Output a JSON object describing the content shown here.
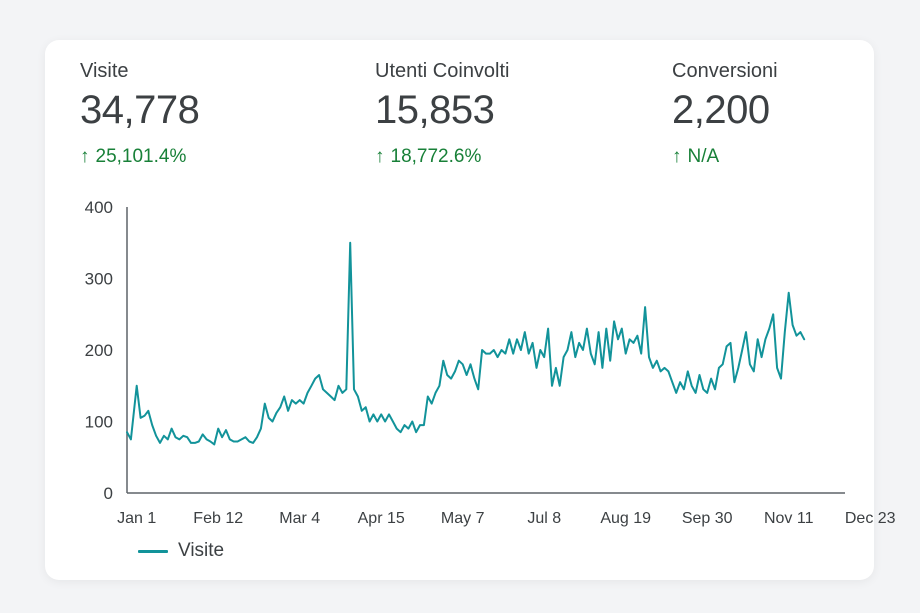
{
  "metrics": [
    {
      "label": "Visite",
      "value": "34,778",
      "change": "25,101.4%",
      "arrow": "↑"
    },
    {
      "label": "Utenti Coinvolti",
      "value": "15,853",
      "change": "18,772.6%",
      "arrow": "↑"
    },
    {
      "label": "Conversioni",
      "value": "2,200",
      "change": "N/A",
      "arrow": "↑"
    }
  ],
  "colors": {
    "series": "#12939a",
    "positive": "#188038",
    "text": "#3c4043",
    "axis": "#5f6368"
  },
  "chart_data": {
    "type": "line",
    "title": "",
    "xlabel": "",
    "ylabel": "",
    "ylim": [
      0,
      400
    ],
    "yticks": [
      0,
      100,
      200,
      300,
      400
    ],
    "x_range": [
      -5,
      365
    ],
    "xticks": [
      {
        "label": "Jan  1",
        "day": 0
      },
      {
        "label": "Feb 12",
        "day": 42
      },
      {
        "label": "Mar 4",
        "day": 84
      },
      {
        "label": "Apr 15",
        "day": 126
      },
      {
        "label": "May 7",
        "day": 168
      },
      {
        "label": "Jul 8",
        "day": 210
      },
      {
        "label": "Aug 19",
        "day": 252
      },
      {
        "label": "Sep 30",
        "day": 294
      },
      {
        "label": "Nov 11",
        "day": 336
      },
      {
        "label": "Dec 23",
        "day": 378
      }
    ],
    "legend": "bottom-left",
    "grid": false,
    "series": [
      {
        "name": "Visite",
        "points": [
          [
            -5,
            85
          ],
          [
            -3,
            75
          ],
          [
            0,
            150
          ],
          [
            2,
            105
          ],
          [
            4,
            108
          ],
          [
            6,
            115
          ],
          [
            8,
            95
          ],
          [
            10,
            80
          ],
          [
            12,
            70
          ],
          [
            14,
            80
          ],
          [
            16,
            75
          ],
          [
            18,
            90
          ],
          [
            20,
            78
          ],
          [
            22,
            75
          ],
          [
            24,
            80
          ],
          [
            26,
            78
          ],
          [
            28,
            70
          ],
          [
            30,
            70
          ],
          [
            32,
            72
          ],
          [
            34,
            82
          ],
          [
            36,
            75
          ],
          [
            38,
            72
          ],
          [
            40,
            68
          ],
          [
            42,
            90
          ],
          [
            44,
            78
          ],
          [
            46,
            88
          ],
          [
            48,
            75
          ],
          [
            50,
            72
          ],
          [
            52,
            72
          ],
          [
            54,
            75
          ],
          [
            56,
            78
          ],
          [
            58,
            72
          ],
          [
            60,
            70
          ],
          [
            62,
            78
          ],
          [
            64,
            90
          ],
          [
            66,
            125
          ],
          [
            68,
            105
          ],
          [
            70,
            100
          ],
          [
            72,
            112
          ],
          [
            74,
            120
          ],
          [
            76,
            135
          ],
          [
            78,
            115
          ],
          [
            80,
            130
          ],
          [
            82,
            125
          ],
          [
            84,
            130
          ],
          [
            86,
            125
          ],
          [
            88,
            140
          ],
          [
            90,
            150
          ],
          [
            92,
            160
          ],
          [
            94,
            165
          ],
          [
            96,
            145
          ],
          [
            98,
            140
          ],
          [
            100,
            135
          ],
          [
            102,
            130
          ],
          [
            104,
            150
          ],
          [
            106,
            140
          ],
          [
            108,
            145
          ],
          [
            110,
            350
          ],
          [
            112,
            145
          ],
          [
            114,
            135
          ],
          [
            116,
            115
          ],
          [
            118,
            120
          ],
          [
            120,
            100
          ],
          [
            122,
            110
          ],
          [
            124,
            100
          ],
          [
            126,
            110
          ],
          [
            128,
            100
          ],
          [
            130,
            110
          ],
          [
            132,
            100
          ],
          [
            134,
            90
          ],
          [
            136,
            85
          ],
          [
            138,
            95
          ],
          [
            140,
            90
          ],
          [
            142,
            100
          ],
          [
            144,
            85
          ],
          [
            146,
            95
          ],
          [
            148,
            95
          ],
          [
            150,
            135
          ],
          [
            152,
            125
          ],
          [
            154,
            140
          ],
          [
            156,
            150
          ],
          [
            158,
            185
          ],
          [
            160,
            165
          ],
          [
            162,
            160
          ],
          [
            164,
            170
          ],
          [
            166,
            185
          ],
          [
            168,
            180
          ],
          [
            170,
            165
          ],
          [
            172,
            180
          ],
          [
            174,
            160
          ],
          [
            176,
            145
          ],
          [
            178,
            200
          ],
          [
            180,
            195
          ],
          [
            182,
            195
          ],
          [
            184,
            200
          ],
          [
            186,
            190
          ],
          [
            188,
            200
          ],
          [
            190,
            195
          ],
          [
            192,
            215
          ],
          [
            194,
            195
          ],
          [
            196,
            215
          ],
          [
            198,
            200
          ],
          [
            200,
            225
          ],
          [
            202,
            195
          ],
          [
            204,
            210
          ],
          [
            206,
            175
          ],
          [
            208,
            200
          ],
          [
            210,
            190
          ],
          [
            212,
            230
          ],
          [
            214,
            150
          ],
          [
            216,
            175
          ],
          [
            218,
            150
          ],
          [
            220,
            190
          ],
          [
            222,
            200
          ],
          [
            224,
            225
          ],
          [
            226,
            190
          ],
          [
            228,
            210
          ],
          [
            230,
            200
          ],
          [
            232,
            230
          ],
          [
            234,
            195
          ],
          [
            236,
            180
          ],
          [
            238,
            225
          ],
          [
            240,
            175
          ],
          [
            242,
            230
          ],
          [
            244,
            185
          ],
          [
            246,
            240
          ],
          [
            248,
            215
          ],
          [
            250,
            230
          ],
          [
            252,
            195
          ],
          [
            254,
            215
          ],
          [
            256,
            210
          ],
          [
            258,
            220
          ],
          [
            260,
            195
          ],
          [
            262,
            260
          ],
          [
            264,
            190
          ],
          [
            266,
            175
          ],
          [
            268,
            185
          ],
          [
            270,
            170
          ],
          [
            272,
            175
          ],
          [
            274,
            170
          ],
          [
            276,
            155
          ],
          [
            278,
            140
          ],
          [
            280,
            155
          ],
          [
            282,
            145
          ],
          [
            284,
            170
          ],
          [
            286,
            150
          ],
          [
            288,
            140
          ],
          [
            290,
            165
          ],
          [
            292,
            145
          ],
          [
            294,
            140
          ],
          [
            296,
            160
          ],
          [
            298,
            145
          ],
          [
            300,
            175
          ],
          [
            302,
            180
          ],
          [
            304,
            205
          ],
          [
            306,
            210
          ],
          [
            308,
            155
          ],
          [
            310,
            175
          ],
          [
            312,
            200
          ],
          [
            314,
            225
          ],
          [
            316,
            180
          ],
          [
            318,
            170
          ],
          [
            320,
            215
          ],
          [
            322,
            190
          ],
          [
            324,
            215
          ],
          [
            326,
            230
          ],
          [
            328,
            250
          ],
          [
            330,
            175
          ],
          [
            332,
            160
          ],
          [
            334,
            225
          ],
          [
            336,
            280
          ],
          [
            338,
            235
          ],
          [
            340,
            220
          ],
          [
            342,
            225
          ],
          [
            344,
            215
          ]
        ]
      }
    ]
  }
}
